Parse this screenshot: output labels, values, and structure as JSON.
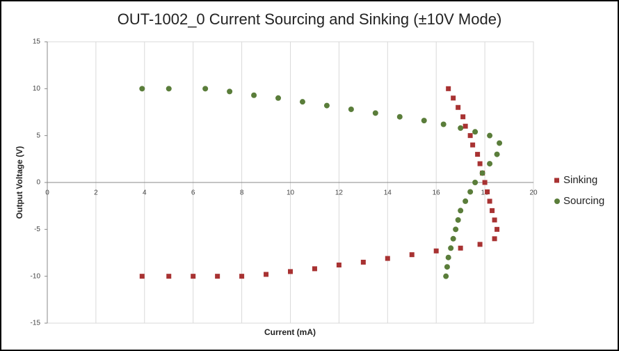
{
  "chart_data": {
    "type": "scatter",
    "title": "OUT-1002_0 Current  Sourcing  and  Sinking  (±10V Mode)",
    "xlabel": "Current (mA)",
    "ylabel": "Output Voltage (V)",
    "xlim": [
      0,
      20
    ],
    "ylim": [
      -15,
      15
    ],
    "xticks": [
      0,
      2,
      4,
      6,
      8,
      10,
      12,
      14,
      16,
      18,
      20
    ],
    "yticks": [
      -15,
      -10,
      -5,
      0,
      5,
      10,
      15
    ],
    "grid": true,
    "legend": "right",
    "series": [
      {
        "name": "Sinking",
        "color": "#a83232",
        "marker": "square",
        "x": [
          16.5,
          16.7,
          16.9,
          17.1,
          17.2,
          17.4,
          17.5,
          17.7,
          17.8,
          17.9,
          18.0,
          18.1,
          18.2,
          18.3,
          18.4,
          18.5,
          18.4,
          17.8,
          17,
          16,
          15,
          14,
          13,
          12,
          11,
          10,
          9,
          8,
          7,
          6,
          5,
          3.9
        ],
        "values": [
          10,
          9,
          8,
          7,
          6,
          5,
          4,
          3,
          2,
          1,
          0,
          -1,
          -2,
          -3,
          -4,
          -5,
          -6,
          -6.6,
          -7,
          -7.3,
          -7.7,
          -8.1,
          -8.5,
          -8.8,
          -9.2,
          -9.5,
          -9.8,
          -10,
          -10,
          -10,
          -10,
          -10
        ]
      },
      {
        "name": "Sourcing",
        "color": "#5a7d3a",
        "marker": "circle",
        "x": [
          3.9,
          5,
          6.5,
          7.5,
          8.5,
          9.5,
          10.5,
          11.5,
          12.5,
          13.5,
          14.5,
          15.5,
          16.3,
          17,
          17.6,
          18.2,
          18.6,
          18.5,
          18.2,
          17.9,
          17.6,
          17.4,
          17.2,
          17.0,
          16.9,
          16.8,
          16.7,
          16.6,
          16.5,
          16.45,
          16.4
        ],
        "values": [
          10,
          10,
          10,
          9.7,
          9.3,
          9,
          8.6,
          8.2,
          7.8,
          7.4,
          7,
          6.6,
          6.2,
          5.8,
          5.4,
          5,
          4.2,
          3,
          2,
          1,
          0,
          -1,
          -2,
          -3,
          -4,
          -5,
          -6,
          -7,
          -8,
          -9,
          -10
        ]
      }
    ]
  }
}
